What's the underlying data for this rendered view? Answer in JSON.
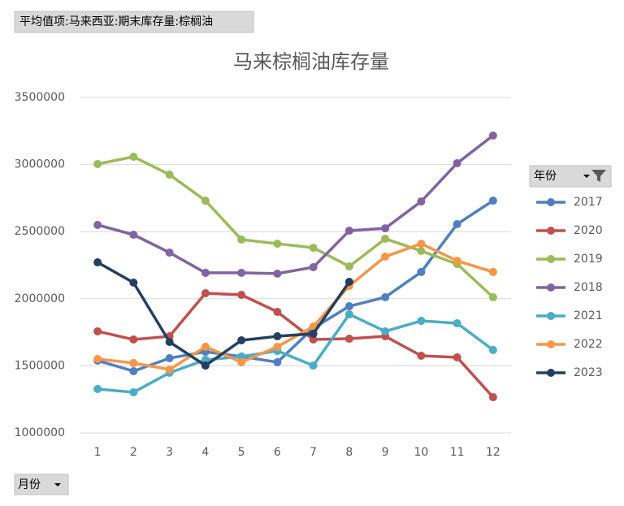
{
  "chart_data": {
    "type": "line",
    "filter_label": "平均值项:马来西亚:期末库存量:棕榈油",
    "title": "马来棕榈油库存量",
    "legend_title": "年份",
    "axis_field": "月份",
    "categories": [
      "1",
      "2",
      "3",
      "4",
      "5",
      "6",
      "7",
      "8",
      "9",
      "10",
      "11",
      "12"
    ],
    "ylim": [
      1000000,
      3500000
    ],
    "yticks": [
      1000000,
      1500000,
      2000000,
      2500000,
      3000000,
      3500000
    ],
    "grid": true,
    "legend": "right",
    "series": [
      {
        "name": "2017",
        "color": "#4f7fc0",
        "values": [
          1539000,
          1460000,
          1557000,
          1605000,
          1569000,
          1527000,
          1781000,
          1944000,
          2011000,
          2199000,
          2556000,
          2731000
        ]
      },
      {
        "name": "2020",
        "color": "#c0504d",
        "values": [
          1757000,
          1696000,
          1720000,
          2041000,
          2029000,
          1902000,
          1696000,
          1702000,
          1720000,
          1575000,
          1563000,
          1266000
        ]
      },
      {
        "name": "2019",
        "color": "#9bbb59",
        "values": [
          3004000,
          3058000,
          2925000,
          2731000,
          2441000,
          2410000,
          2380000,
          2241000,
          2447000,
          2356000,
          2259000,
          2011000
        ]
      },
      {
        "name": "2018",
        "color": "#8064a2",
        "values": [
          2550000,
          2477000,
          2344000,
          2193000,
          2193000,
          2187000,
          2235000,
          2507000,
          2525000,
          2725000,
          3010000,
          3216000
        ]
      },
      {
        "name": "2021",
        "color": "#4bacc6",
        "values": [
          1327000,
          1303000,
          1448000,
          1545000,
          1569000,
          1611000,
          1502000,
          1884000,
          1757000,
          1835000,
          1817000,
          1618000
        ]
      },
      {
        "name": "2022",
        "color": "#f79646",
        "values": [
          1551000,
          1521000,
          1472000,
          1642000,
          1527000,
          1642000,
          1793000,
          2096000,
          2314000,
          2410000,
          2283000,
          2199000
        ]
      },
      {
        "name": "2023",
        "color": "#243f60",
        "values": [
          2271000,
          2120000,
          1678000,
          1502000,
          1690000,
          1720000,
          1739000,
          2126000,
          null,
          null,
          null,
          null
        ]
      }
    ]
  }
}
